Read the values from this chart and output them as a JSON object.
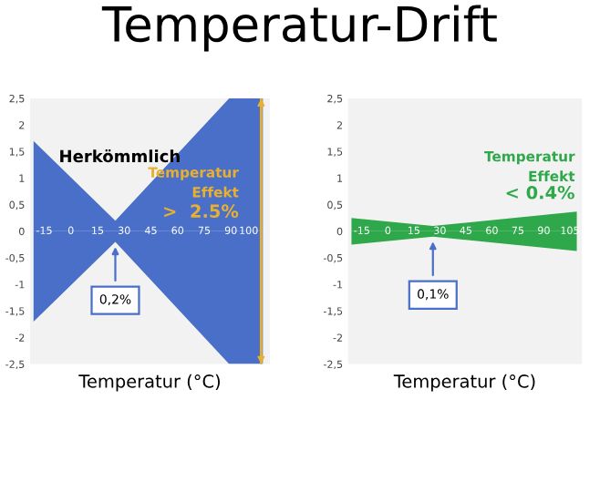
{
  "chart_data": [
    {
      "type": "area",
      "title": "Temperatur-Drift",
      "subtitle": "Herkömmlich",
      "xlabel": "Temperatur (°C)",
      "x": [
        -21,
        25,
        89,
        108
      ],
      "series": [
        {
          "color": "#4a6fc8",
          "values": [
            1.7,
            0.2,
            2.5,
            2.5
          ]
        },
        {
          "color": "#4a6fc8",
          "values": [
            -1.7,
            -0.2,
            -2.5,
            -2.5
          ]
        }
      ],
      "xlim": [
        -23,
        112
      ],
      "ylim": [
        -2.5,
        2.5
      ],
      "xticks": [
        -15,
        0,
        15,
        30,
        45,
        60,
        75,
        90,
        100
      ],
      "yticks": [
        {
          "value": -2.5,
          "label": "-2,5"
        },
        {
          "value": -2,
          "label": "-2"
        },
        {
          "value": -1.5,
          "label": "-1,5"
        },
        {
          "value": -1,
          "label": "-1"
        },
        {
          "value": -0.5,
          "label": "-0,5"
        },
        {
          "value": 0,
          "label": "0"
        },
        {
          "value": 0.5,
          "label": "0,5"
        },
        {
          "value": 1,
          "label": "1"
        },
        {
          "value": 1.5,
          "label": "1,5"
        },
        {
          "value": 2,
          "label": "2"
        },
        {
          "value": 2.5,
          "label": "2,5"
        }
      ],
      "ref_lines": [
        {
          "axis": "x",
          "value": 107,
          "color": "#e8b030"
        }
      ],
      "annotations": [
        "Temperatur\nEffekt",
        ">  2.5%",
        {
          "text": "0,2%",
          "x": 25,
          "y": -0.2
        }
      ]
    },
    {
      "type": "area",
      "xlabel": "Temperatur (°C)",
      "x": [
        -21,
        26,
        109
      ],
      "series": [
        {
          "color": "#2ea84a",
          "values": [
            0.25,
            0.1,
            0.37
          ]
        },
        {
          "color": "#2ea84a",
          "values": [
            -0.25,
            -0.1,
            -0.37
          ]
        }
      ],
      "xlim": [
        -23,
        112
      ],
      "ylim": [
        -2.5,
        2.5
      ],
      "xticks": [
        -15,
        0,
        15,
        30,
        45,
        60,
        75,
        90,
        105
      ],
      "yticks": [
        {
          "value": -2.5,
          "label": "-2,5"
        },
        {
          "value": -2,
          "label": "-2"
        },
        {
          "value": -1.5,
          "label": "-1,5"
        },
        {
          "value": -1,
          "label": "-1"
        },
        {
          "value": -0.5,
          "label": "-0,5"
        },
        {
          "value": 0,
          "label": "0"
        },
        {
          "value": 0.5,
          "label": "0,5"
        },
        {
          "value": 1,
          "label": "1"
        },
        {
          "value": 1.5,
          "label": "1,5"
        },
        {
          "value": 2,
          "label": "2"
        },
        {
          "value": 2.5,
          "label": "2,5"
        }
      ],
      "annotations": [
        "Temperatur\nEffekt",
        "< 0.4%",
        {
          "text": "0,1%",
          "x": 26,
          "y": -0.1
        }
      ]
    }
  ]
}
